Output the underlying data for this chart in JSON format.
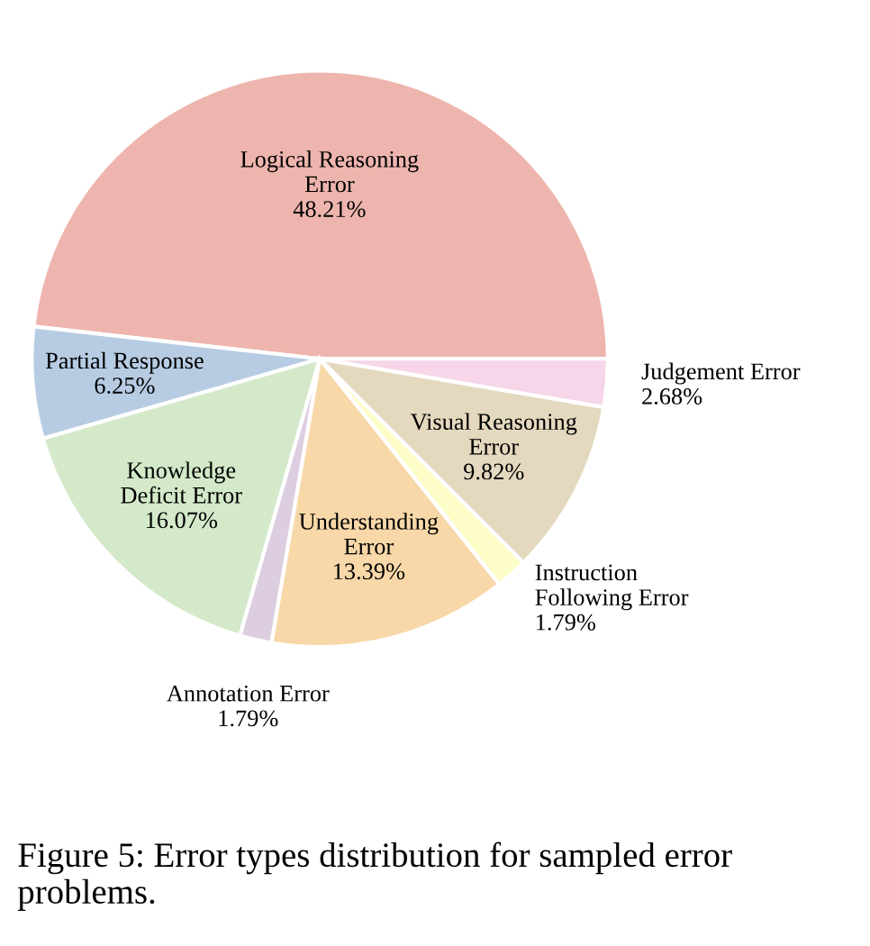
{
  "chart_data": {
    "type": "pie",
    "categories": [
      "Logical Reasoning\nError",
      "Partial Response",
      "Knowledge\nDeficit Error",
      "Annotation Error",
      "Understanding\nError",
      "Instruction\nFollowing Error",
      "Visual Reasoning\nError",
      "Judgement Error"
    ],
    "values": [
      48.21,
      6.25,
      16.07,
      1.79,
      13.39,
      1.79,
      9.82,
      2.68
    ],
    "value_labels": [
      "48.21%",
      "6.25%",
      "16.07%",
      "1.79%",
      "13.39%",
      "1.79%",
      "9.82%",
      "2.68%"
    ],
    "colors": [
      "#eeb5ae",
      "#b7cce3",
      "#d3e9c9",
      "#dccde0",
      "#f8d8a8",
      "#fdfdc8",
      "#e4d8bf",
      "#f6d6e8"
    ],
    "annotations": [
      "Figure 5: Error types distribution for sampled error problems."
    ],
    "legend": false
  }
}
